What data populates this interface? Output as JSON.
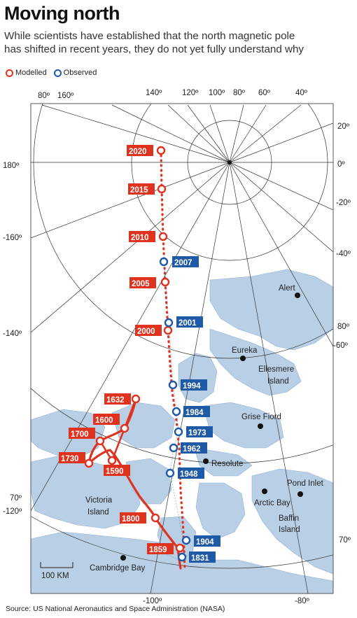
{
  "title": "Moving north",
  "subtitle_lines": [
    "While scientists have established that the north magnetic pole",
    "has shifted in recent years, they do not yet fully understand why"
  ],
  "legend": [
    {
      "label": "Modelled",
      "color": "#e0331f"
    },
    {
      "label": "Observed",
      "color": "#1f5aa6"
    }
  ],
  "colors": {
    "modelled": "#e0331f",
    "observed": "#1f5aa6",
    "land": "#b9cfe6",
    "sea": "#ffffff"
  },
  "top_longitude_labels": [
    "80º",
    "160º",
    "140º",
    "120º",
    "100º",
    "80º",
    "60º",
    "40º"
  ],
  "right_labels": [
    "20º",
    "0º",
    "-20º",
    "-40º",
    "80º",
    "-60º",
    "70º"
  ],
  "left_labels": [
    "180º",
    "-160º",
    "-140º",
    "70º",
    "-120º"
  ],
  "bottom_labels": [
    "-100º",
    "-80º"
  ],
  "places": [
    {
      "name": "Alert"
    },
    {
      "name": "Eureka"
    },
    {
      "name": "Ellesmere"
    },
    {
      "name": "Island"
    },
    {
      "name": "Grise Fiord"
    },
    {
      "name": "Resolute"
    },
    {
      "name": "Pond Inlet"
    },
    {
      "name": "Arctic Bay"
    },
    {
      "name": "Baffin"
    },
    {
      "name": "Island"
    },
    {
      "name": "Victoria"
    },
    {
      "name": "Island"
    },
    {
      "name": "Cambridge Bay"
    }
  ],
  "modelled_years": [
    "2020",
    "2015",
    "2010",
    "2005",
    "2000",
    "1632",
    "1600",
    "1700",
    "1730",
    "1590",
    "1800",
    "1859"
  ],
  "observed_years": [
    "2007",
    "2001",
    "1994",
    "1984",
    "1973",
    "1962",
    "1948",
    "1904",
    "1831"
  ],
  "scale_label": "100 KM",
  "source": "Source:  US National Aeronautics and Space Administration (NASA)"
}
